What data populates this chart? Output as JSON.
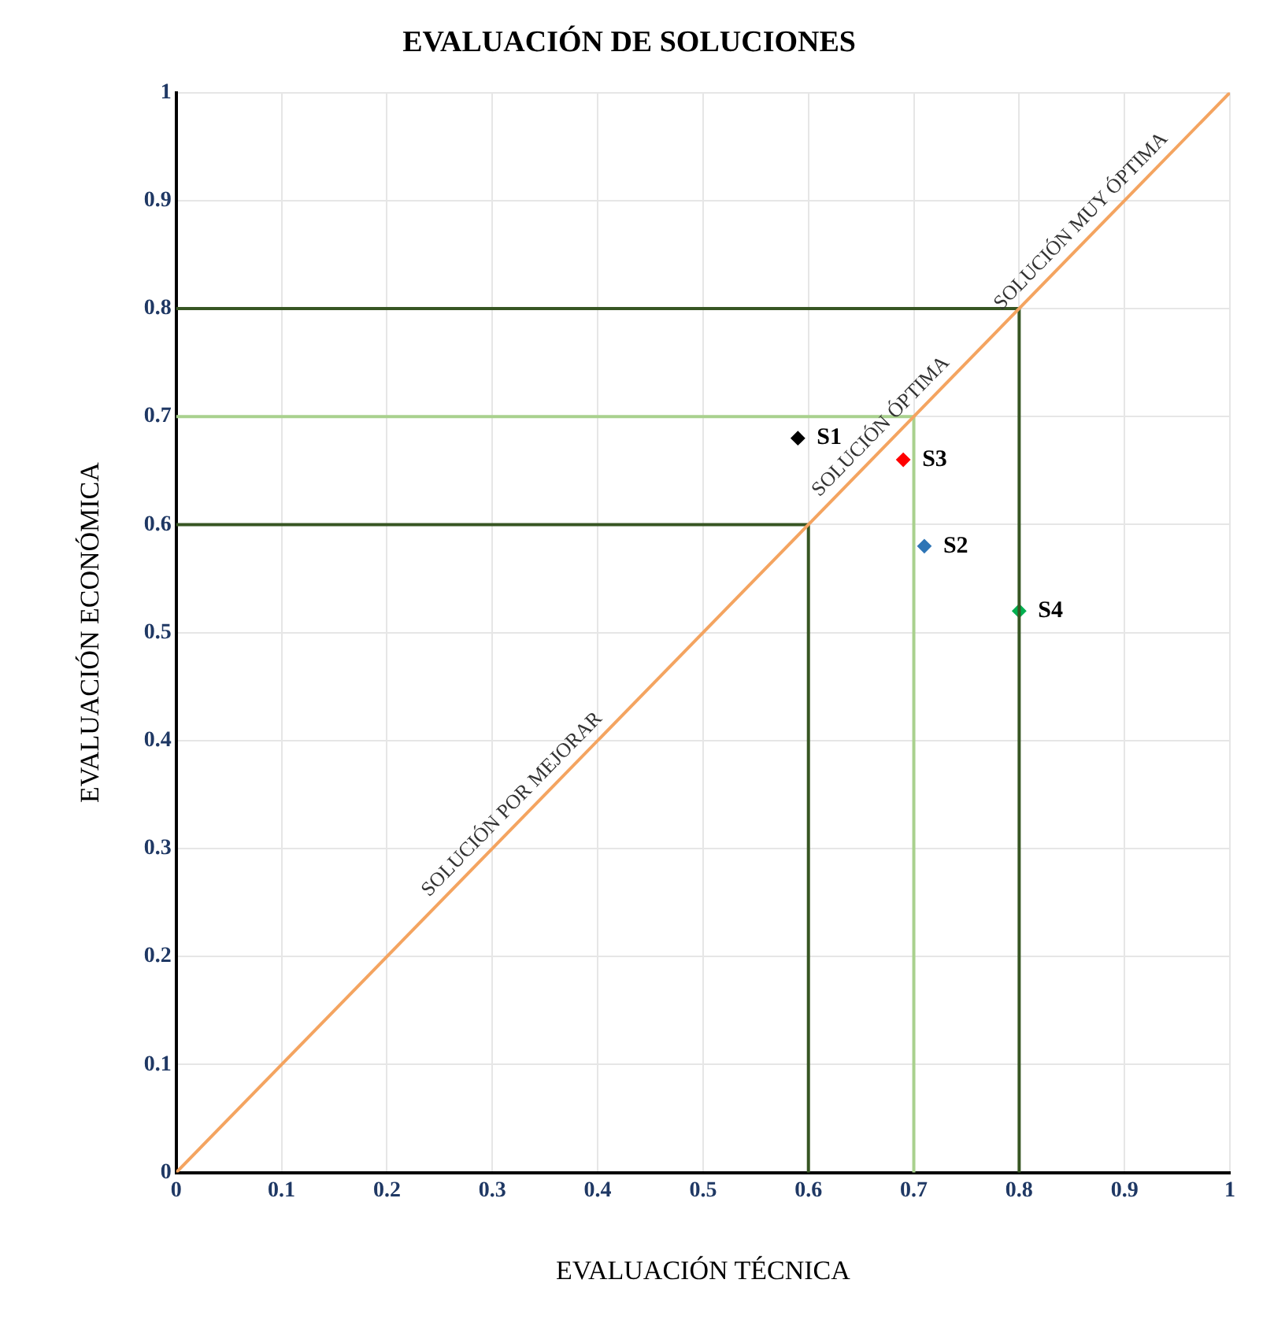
{
  "chart_data": {
    "type": "scatter",
    "title": "EVALUACIÓN DE SOLUCIONES",
    "xlabel": "EVALUACIÓN TÉCNICA",
    "ylabel": "EVALUACIÓN ECONÓMICA",
    "xlim": [
      0,
      1
    ],
    "ylim": [
      0,
      1
    ],
    "xticks": [
      0,
      0.1,
      0.2,
      0.3,
      0.4,
      0.5,
      0.6,
      0.7,
      0.8,
      0.9,
      1
    ],
    "yticks": [
      0,
      0.1,
      0.2,
      0.3,
      0.4,
      0.5,
      0.6,
      0.7,
      0.8,
      0.9,
      1
    ],
    "grid": true,
    "legend": false,
    "marker": "diamond",
    "series": [
      {
        "type": "line",
        "color": "#f4a460",
        "x": [
          0,
          1
        ],
        "values": [
          0,
          1
        ],
        "marker": "none"
      },
      {
        "type": "line",
        "color": "#375623",
        "x": [
          0,
          0.8,
          0.8
        ],
        "values": [
          0.8,
          0.8,
          0
        ],
        "marker": "none"
      },
      {
        "type": "line",
        "color": "#a9d18e",
        "x": [
          0,
          0.7,
          0.7
        ],
        "values": [
          0.7,
          0.7,
          0
        ],
        "marker": "none"
      },
      {
        "type": "line",
        "color": "#375623",
        "x": [
          0,
          0.6,
          0.6
        ],
        "values": [
          0.6,
          0.6,
          0
        ],
        "marker": "none"
      },
      {
        "name": "S1",
        "color": "#000000",
        "x": [
          0.59
        ],
        "values": [
          0.68
        ]
      },
      {
        "name": "S2",
        "color": "#2e75b6",
        "x": [
          0.71
        ],
        "values": [
          0.58
        ]
      },
      {
        "name": "S3",
        "color": "#ff0000",
        "x": [
          0.69
        ],
        "values": [
          0.66
        ]
      },
      {
        "name": "S4",
        "color": "#00b050",
        "x": [
          0.8
        ],
        "values": [
          0.52
        ]
      }
    ],
    "annotations": [
      {
        "text": "SOLUCIÓN POR MEJORAR",
        "x": 0.33,
        "y": 0.33
      },
      {
        "text": "SOLUCIÓN ÓPTIMA",
        "x": 0.68,
        "y": 0.68
      },
      {
        "text": "SOLUCIÓN MUY ÓPTIMA",
        "x": 0.87,
        "y": 0.87
      }
    ]
  }
}
